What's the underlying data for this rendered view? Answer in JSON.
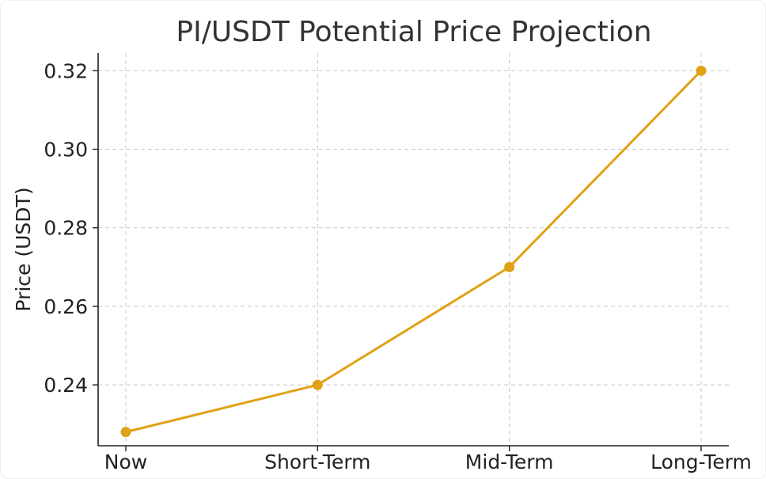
{
  "chart_data": {
    "type": "line",
    "title": "PI/USDT Potential Price Projection",
    "xlabel": "",
    "ylabel": "Price (USDT)",
    "categories": [
      "Now",
      "Short-Term",
      "Mid-Term",
      "Long-Term"
    ],
    "series": [
      {
        "values": [
          0.228,
          0.24,
          0.27,
          0.32
        ]
      }
    ],
    "ylim": [
      0.2245,
      0.3245
    ],
    "yticks": [
      0.24,
      0.26,
      0.28,
      0.3,
      0.32
    ],
    "ytick_labels": [
      "0.24",
      "0.26",
      "0.28",
      "0.30",
      "0.32"
    ],
    "grid": true,
    "line_color": "#E0A114",
    "marker": "circle"
  }
}
